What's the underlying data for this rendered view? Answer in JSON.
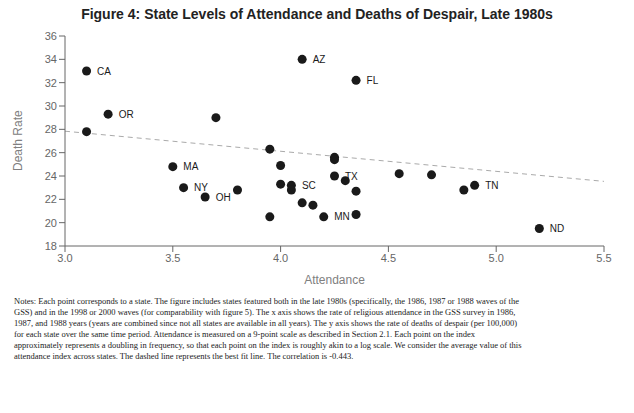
{
  "chart_data": {
    "type": "scatter",
    "title": "Figure 4: State Levels of Attendance and Deaths of Despair, Late 1980s",
    "xlabel": "Attendance",
    "ylabel": "Death Rate",
    "xlim": [
      3.0,
      5.5
    ],
    "ylim": [
      18,
      36
    ],
    "xticks": [
      {
        "value": 3,
        "label": "3.0"
      },
      3.5,
      {
        "value": 4,
        "label": "4.0"
      },
      4.5,
      {
        "value": 5,
        "label": "5.0"
      },
      5.5
    ],
    "yticks": [
      18,
      20,
      22,
      24,
      26,
      28,
      30,
      32,
      34,
      36
    ],
    "x": [
      3.1,
      3.1,
      3.2,
      3.5,
      3.55,
      3.65,
      3.7,
      3.8,
      3.95,
      3.95,
      4.0,
      4.0,
      4.05,
      4.05,
      4.1,
      4.1,
      4.15,
      4.2,
      4.25,
      4.25,
      4.25,
      4.3,
      4.35,
      4.35,
      4.35,
      4.55,
      4.7,
      4.85,
      4.9,
      5.2
    ],
    "values": [
      33.0,
      27.8,
      29.3,
      24.8,
      23.0,
      22.2,
      29.0,
      22.8,
      26.3,
      20.5,
      24.9,
      23.3,
      23.2,
      22.8,
      34.0,
      21.7,
      21.5,
      20.5,
      25.6,
      25.4,
      24.0,
      23.6,
      32.2,
      22.7,
      20.7,
      24.2,
      24.1,
      22.8,
      23.2,
      19.5
    ],
    "labels": [
      "CA",
      null,
      "OR",
      "MA",
      "NY",
      "OH",
      null,
      null,
      null,
      null,
      null,
      null,
      "SC",
      null,
      "AZ",
      null,
      null,
      "MN",
      null,
      null,
      "TX",
      null,
      "FL",
      null,
      null,
      null,
      null,
      null,
      "TN",
      "ND"
    ],
    "color": "#1a1a1a",
    "marker": "circle",
    "grid": false,
    "trendline": {
      "x": [
        3.0,
        5.5
      ],
      "values": [
        27.84,
        23.54
      ],
      "color": "#aaaaaa",
      "line_style": "dashed"
    },
    "notes": [
      "Notes: Each point corresponds to a state. The figure includes states featured both in the late 1980s (specifically, the 1986, 1987 or 1988 waves of the",
      "GSS) and in the 1998 or 2000 waves (for comparability with figure 5). The x axis shows the rate of religious attendance in the GSS survey in 1986,",
      "1987, and 1988 years (years are combined since not all states are available in all years). The y axis shows the rate of deaths of despair (per 100,000)",
      "for each state over the same time period. Attendance is measured on a 9-point scale as described in Section 2.1.  Each point on the index",
      "approximately represents a doubling in frequency, so that each point on the index is roughly akin to a log scale. We consider the average value of this",
      "attendance index across states. The dashed line represents the best fit line. The correlation is -0.443."
    ]
  }
}
